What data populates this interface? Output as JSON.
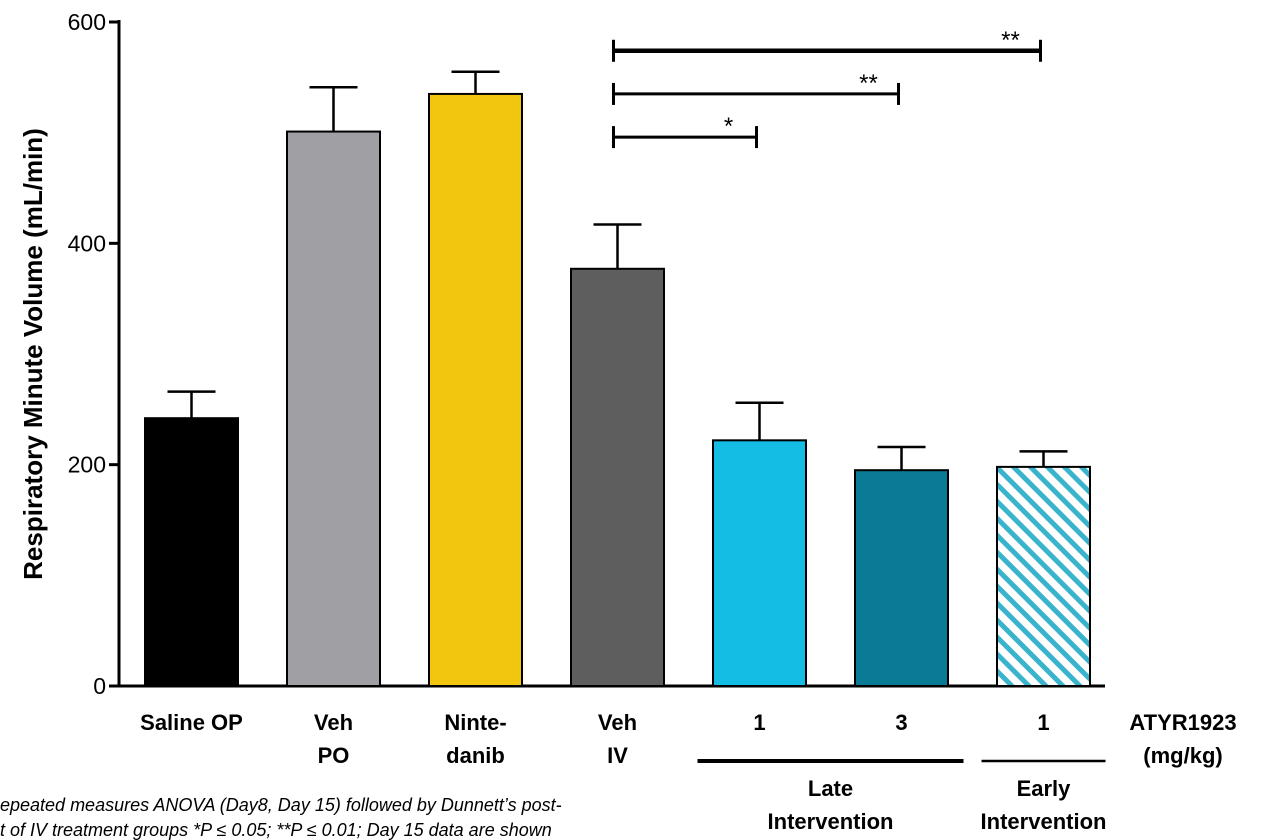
{
  "chart_data": {
    "type": "bar",
    "title": "",
    "xlabel": "",
    "ylabel": "Respiratory Minute Volume (mL/min)",
    "ylim": [
      0,
      600
    ],
    "yticks": [
      0,
      200,
      400,
      600
    ],
    "grid": false,
    "categories": [
      {
        "lines": [
          "Saline OP"
        ],
        "value": 242,
        "error": 24,
        "color": "#000000",
        "pattern": "solid"
      },
      {
        "lines": [
          "Veh",
          "PO"
        ],
        "value": 501,
        "error": 40,
        "color": "#a09fa4",
        "pattern": "solid"
      },
      {
        "lines": [
          "Ninte-",
          "danib"
        ],
        "value": 535,
        "error": 20,
        "color": "#f2c60f",
        "pattern": "solid"
      },
      {
        "lines": [
          "Veh",
          "IV"
        ],
        "value": 377,
        "error": 40,
        "color": "#5e5e5e",
        "pattern": "solid"
      },
      {
        "lines": [
          "1"
        ],
        "value": 222,
        "error": 34,
        "color": "#13bde3",
        "pattern": "solid"
      },
      {
        "lines": [
          "3"
        ],
        "value": 195,
        "error": 21,
        "color": "#0a7b97",
        "pattern": "solid"
      },
      {
        "lines": [
          "1"
        ],
        "value": 198,
        "error": 14,
        "color": "#3ab3cc",
        "pattern": "hatched"
      }
    ],
    "dose_label": [
      "ATYR1923",
      "(mg/kg)"
    ],
    "groups": [
      {
        "lines": [
          "Late",
          "Intervention"
        ],
        "from": 4,
        "to": 5
      },
      {
        "lines": [
          "Early",
          "Intervention"
        ],
        "from": 6,
        "to": 6
      }
    ],
    "significance": [
      {
        "from": 3,
        "to": 4,
        "label": "*",
        "y": 496
      },
      {
        "from": 3,
        "to": 5,
        "label": "**",
        "y": 535
      },
      {
        "from": 3,
        "to": 6,
        "label": "**",
        "y": 574
      }
    ],
    "footnote": [
      "epeated measures ANOVA (Day8, Day 15) followed by Dunnett’s post-",
      "t of IV treatment groups *P ≤ 0.05; **P ≤ 0.01;  Day 15 data are shown"
    ]
  }
}
